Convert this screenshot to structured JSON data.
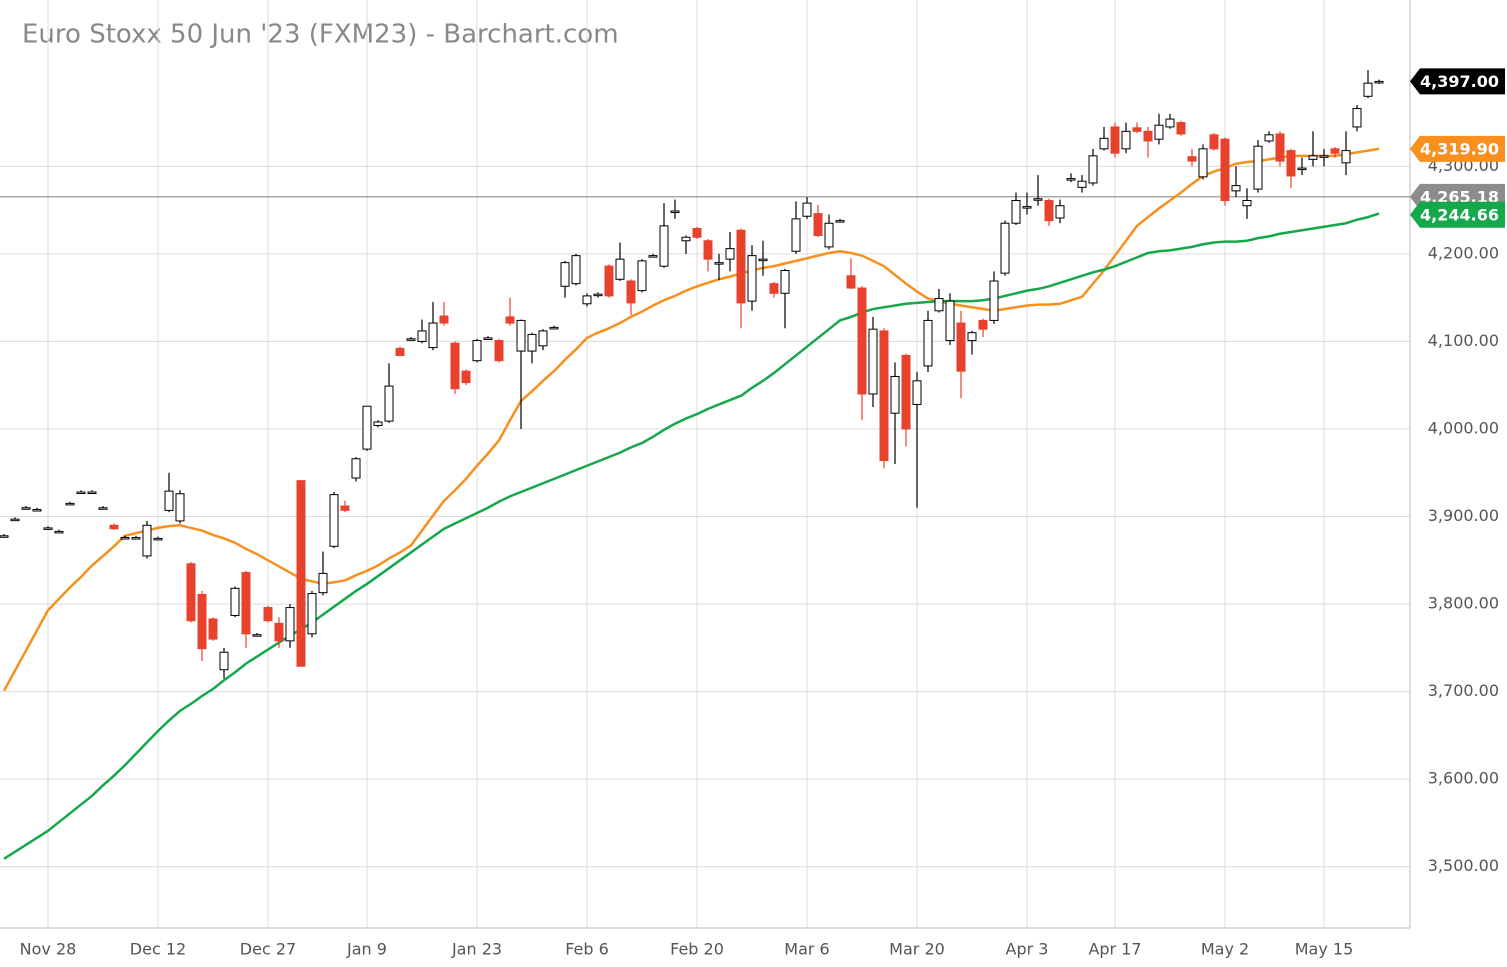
{
  "chart_data": {
    "type": "candlestick",
    "title": "Euro Stoxx 50 Jun '23 (FXM23) - Barchart.com",
    "categories": [
      null,
      null,
      null,
      null,
      "Nov 28",
      null,
      null,
      null,
      null,
      null,
      null,
      null,
      null,
      null,
      "Dec 12",
      null,
      null,
      null,
      null,
      null,
      null,
      null,
      null,
      null,
      "Dec 27",
      null,
      null,
      null,
      null,
      null,
      null,
      null,
      null,
      "Jan 9",
      null,
      null,
      null,
      null,
      null,
      null,
      null,
      null,
      null,
      "Jan 23",
      null,
      null,
      null,
      null,
      null,
      null,
      null,
      null,
      null,
      "Feb 6",
      null,
      null,
      null,
      null,
      null,
      null,
      null,
      null,
      null,
      "Feb 20",
      null,
      null,
      null,
      null,
      null,
      null,
      null,
      null,
      null,
      "Mar 6",
      null,
      null,
      null,
      null,
      null,
      null,
      null,
      null,
      null,
      "Mar 20",
      null,
      null,
      null,
      null,
      null,
      null,
      null,
      null,
      null,
      "Apr 3",
      null,
      null,
      null,
      null,
      null,
      null,
      null,
      "Apr 17",
      null,
      null,
      null,
      null,
      null,
      null,
      null,
      null,
      null,
      "May 2",
      null,
      null,
      null,
      null,
      null,
      null,
      null,
      null,
      "May 15",
      null,
      null,
      null,
      null,
      null
    ],
    "open": [
      3878,
      3897,
      3910,
      3908,
      3887,
      3883,
      3915,
      3928,
      3928,
      3910,
      3890,
      3876,
      3876,
      3855,
      3875,
      3907,
      3895,
      3846,
      3811,
      3783,
      3725,
      3787,
      3836,
      3765,
      3796,
      3778,
      3758,
      3941,
      3766,
      3813,
      3866,
      3912,
      3944,
      3977,
      4004,
      4009,
      4092,
      4103,
      4100,
      4093,
      4129,
      4098,
      4066,
      4078,
      4104,
      4101,
      4128,
      4089,
      4089,
      4095,
      4116,
      4163,
      4166,
      4143,
      4154,
      4186,
      4171,
      4169,
      4158,
      4198,
      4186,
      4249,
      4215,
      4229,
      4215,
      4190,
      4194,
      4227,
      4146,
      4194,
      4166,
      4155,
      4203,
      4243,
      4246,
      4208,
      4238,
      4175,
      4161,
      4040,
      4112,
      4018,
      4084,
      4028,
      4072,
      4135,
      4101,
      4121,
      4101,
      4124,
      4124,
      4178,
      4235,
      4254,
      4263,
      4261,
      4241,
      4286,
      4276,
      4281,
      4320,
      4345,
      4320,
      4344,
      4340,
      4331,
      4345,
      4350,
      4311,
      4288,
      4336,
      4331,
      4272,
      4255,
      4274,
      4329,
      4337,
      4318,
      4298,
      4308,
      4312,
      4320,
      4304,
      4345,
      4380,
      4396
    ],
    "high": [
      3880,
      3899,
      3912,
      3910,
      3889,
      3885,
      3917,
      3930,
      3930,
      3912,
      3892,
      3878,
      3878,
      3895,
      3877,
      3950,
      3930,
      3848,
      3815,
      3785,
      3750,
      3820,
      3838,
      3767,
      3798,
      3785,
      3800,
      3941,
      3815,
      3860,
      3928,
      3918,
      3968,
      4026,
      4010,
      4075,
      4094,
      4105,
      4125,
      4145,
      4145,
      4100,
      4068,
      4103,
      4106,
      4103,
      4150,
      4125,
      4110,
      4114,
      4118,
      4192,
      4200,
      4155,
      4156,
      4188,
      4213,
      4171,
      4194,
      4200,
      4258,
      4262,
      4221,
      4231,
      4217,
      4200,
      4225,
      4229,
      4210,
      4215,
      4168,
      4183,
      4260,
      4265,
      4256,
      4245,
      4240,
      4195,
      4163,
      4128,
      4115,
      4076,
      4086,
      4065,
      4135,
      4160,
      4155,
      4135,
      4112,
      4126,
      4180,
      4238,
      4270,
      4270,
      4290,
      4263,
      4262,
      4292,
      4290,
      4320,
      4345,
      4350,
      4350,
      4350,
      4345,
      4360,
      4360,
      4352,
      4320,
      4325,
      4338,
      4333,
      4300,
      4275,
      4330,
      4340,
      4340,
      4320,
      4310,
      4340,
      4320,
      4322,
      4340,
      4370,
      4410,
      4399
    ],
    "low": [
      3876,
      3895,
      3908,
      3906,
      3885,
      3881,
      3913,
      3926,
      3926,
      3908,
      3885,
      3874,
      3874,
      3852,
      3873,
      3905,
      3892,
      3779,
      3735,
      3758,
      3715,
      3785,
      3750,
      3763,
      3779,
      3750,
      3750,
      3729,
      3762,
      3810,
      3864,
      3905,
      3940,
      3975,
      4002,
      4007,
      4084,
      4101,
      4098,
      4090,
      4118,
      4040,
      4050,
      4076,
      4102,
      4076,
      4118,
      4000,
      4075,
      4090,
      4114,
      4150,
      4164,
      4140,
      4150,
      4150,
      4169,
      4130,
      4156,
      4196,
      4184,
      4240,
      4200,
      4217,
      4180,
      4170,
      4180,
      4115,
      4135,
      4175,
      4150,
      4115,
      4200,
      4240,
      4219,
      4205,
      4236,
      4160,
      4010,
      4025,
      3955,
      3960,
      3980,
      3910,
      4065,
      4133,
      4096,
      4035,
      4085,
      4105,
      4120,
      4175,
      4233,
      4245,
      4255,
      4232,
      4235,
      4282,
      4270,
      4278,
      4318,
      4310,
      4315,
      4338,
      4310,
      4325,
      4343,
      4335,
      4300,
      4285,
      4318,
      4255,
      4265,
      4240,
      4270,
      4327,
      4300,
      4275,
      4290,
      4300,
      4300,
      4310,
      4290,
      4340,
      4378,
      4394
    ],
    "close": [
      3878,
      3897,
      3910,
      3908,
      3887,
      3883,
      3915,
      3928,
      3928,
      3910,
      3886,
      3876,
      3876,
      3890,
      3875,
      3929,
      3926,
      3781,
      3749,
      3760,
      3745,
      3818,
      3766,
      3765,
      3781,
      3758,
      3796,
      3729,
      3812,
      3835,
      3925,
      3907,
      3966,
      4026,
      4008,
      4049,
      4084,
      4103,
      4112,
      4121,
      4121,
      4046,
      4053,
      4101,
      4104,
      4078,
      4121,
      4124,
      4108,
      4112,
      4116,
      4190,
      4198,
      4152,
      4154,
      4152,
      4194,
      4144,
      4192,
      4198,
      4232,
      4249,
      4219,
      4219,
      4194,
      4190,
      4206,
      4144,
      4198,
      4194,
      4155,
      4181,
      4240,
      4258,
      4221,
      4235,
      4238,
      4161,
      4040,
      4114,
      3964,
      4060,
      4000,
      4055,
      4124,
      4149,
      4146,
      4066,
      4110,
      4114,
      4169,
      4235,
      4261,
      4254,
      4263,
      4238,
      4255,
      4286,
      4283,
      4312,
      4332,
      4315,
      4340,
      4340,
      4329,
      4347,
      4354,
      4337,
      4306,
      4320,
      4320,
      4261,
      4278,
      4261,
      4323,
      4336,
      4306,
      4289,
      4298,
      4312,
      4312,
      4315,
      4318,
      4366,
      4395,
      4397
    ],
    "up_color": "#ffffff",
    "down_color": "#e8412c",
    "series": [
      {
        "color": "#f7901e",
        "values": [
          3701,
          3724,
          3747,
          3770,
          3793,
          3806,
          3819,
          3831,
          3844,
          3855,
          3866,
          3878,
          3881,
          3884,
          3887,
          3889,
          3890,
          3887,
          3884,
          3879,
          3875,
          3870,
          3863,
          3857,
          3850,
          3843,
          3836,
          3829,
          3826,
          3823,
          3825,
          3827,
          3833,
          3838,
          3844,
          3852,
          3859,
          3867,
          3884,
          3901,
          3918,
          3930,
          3943,
          3958,
          3972,
          3987,
          4010,
          4032,
          4043,
          4055,
          4066,
          4079,
          4091,
          4104,
          4110,
          4115,
          4121,
          4128,
          4134,
          4141,
          4147,
          4152,
          4158,
          4163,
          4167,
          4171,
          4174,
          4178,
          4181,
          4184,
          4186,
          4189,
          4192,
          4195,
          4198,
          4201,
          4203,
          4201,
          4198,
          4192,
          4186,
          4176,
          4166,
          4157,
          4149,
          4146,
          4143,
          4141,
          4139,
          4137,
          4135,
          4137,
          4139,
          4141,
          4142,
          4142,
          4143,
          4147,
          4151,
          4166,
          4181,
          4198,
          4215,
          4232,
          4242,
          4252,
          4261,
          4270,
          4280,
          4289,
          4294,
          4298,
          4303,
          4305,
          4306,
          4308,
          4310,
          4312,
          4312,
          4312,
          4312,
          4312,
          4314,
          4316,
          4318,
          4320
        ]
      },
      {
        "color": "#14a84b",
        "values": [
          3509,
          3517,
          3525,
          3533,
          3541,
          3551,
          3561,
          3571,
          3581,
          3593,
          3604,
          3616,
          3629,
          3642,
          3655,
          3667,
          3678,
          3686,
          3695,
          3703,
          3713,
          3722,
          3732,
          3740,
          3748,
          3756,
          3764,
          3771,
          3779,
          3788,
          3797,
          3806,
          3815,
          3823,
          3832,
          3841,
          3850,
          3859,
          3868,
          3877,
          3886,
          3892,
          3898,
          3904,
          3910,
          3917,
          3923,
          3928,
          3933,
          3938,
          3943,
          3948,
          3953,
          3958,
          3963,
          3968,
          3973,
          3979,
          3984,
          3991,
          3999,
          4006,
          4012,
          4017,
          4023,
          4028,
          4033,
          4038,
          4047,
          4055,
          4064,
          4074,
          4084,
          4094,
          4104,
          4114,
          4124,
          4128,
          4133,
          4137,
          4139,
          4141,
          4143,
          4144,
          4145,
          4146,
          4146,
          4146,
          4146,
          4147,
          4149,
          4152,
          4155,
          4158,
          4160,
          4163,
          4167,
          4171,
          4175,
          4179,
          4182,
          4186,
          4191,
          4196,
          4201,
          4203,
          4204,
          4206,
          4208,
          4211,
          4213,
          4214,
          4214,
          4215,
          4218,
          4220,
          4223,
          4225,
          4227,
          4229,
          4231,
          4233,
          4235,
          4239,
          4242,
          4246
        ]
      }
    ],
    "price_tags": [
      {
        "value": 4265.18,
        "label": "4,265.18",
        "color": "#8c8c8c",
        "line": true
      },
      {
        "value": 4397,
        "label": "4,397.00",
        "color": "#000000"
      },
      {
        "value": 4319.9,
        "label": "4,319.90",
        "color": "#f7901e"
      },
      {
        "value": 4244.66,
        "label": "4,244.66",
        "color": "#14a84b"
      }
    ],
    "ylim": [
      3430,
      4490
    ],
    "yticks": [
      {
        "value": 3500,
        "label": "3,500.00"
      },
      {
        "value": 3600,
        "label": "3,600.00"
      },
      {
        "value": 3700,
        "label": "3,700.00"
      },
      {
        "value": 3800,
        "label": "3,800.00"
      },
      {
        "value": 3900,
        "label": "3,900.00"
      },
      {
        "value": 4000,
        "label": "4,000.00"
      },
      {
        "value": 4100,
        "label": "4,100.00"
      },
      {
        "value": 4200,
        "label": "4,200.00"
      },
      {
        "value": 4300,
        "label": "4,300.00"
      }
    ],
    "grid": true
  }
}
